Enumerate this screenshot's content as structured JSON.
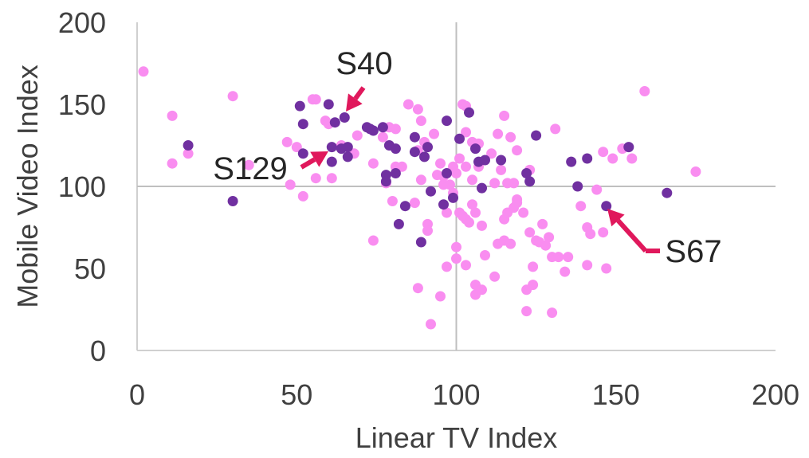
{
  "chart_data": {
    "type": "scatter",
    "xlabel": "Linear TV Index",
    "ylabel": "Mobile Video Index",
    "xlim": [
      0,
      200
    ],
    "ylim": [
      0,
      200
    ],
    "xticks": [
      "0",
      "50",
      "100",
      "150",
      "200"
    ],
    "yticks": [
      "0",
      "50",
      "100",
      "150",
      "200"
    ],
    "reference_lines": {
      "x": 100,
      "y": 100
    },
    "grid": false,
    "legend": "none",
    "series": [
      {
        "color": "#f98df0",
        "points": [
          [
            2,
            170
          ],
          [
            11,
            143
          ],
          [
            11,
            114
          ],
          [
            16,
            120
          ],
          [
            30,
            155
          ],
          [
            35,
            113
          ],
          [
            47,
            127
          ],
          [
            48,
            101
          ],
          [
            50,
            124
          ],
          [
            52,
            94
          ],
          [
            55,
            153
          ],
          [
            56,
            153
          ],
          [
            56,
            105
          ],
          [
            59,
            140
          ],
          [
            60,
            138
          ],
          [
            61,
            105
          ],
          [
            64,
            125
          ],
          [
            68,
            120
          ],
          [
            69,
            131
          ],
          [
            74,
            67
          ],
          [
            74,
            114
          ],
          [
            77,
            130
          ],
          [
            78,
            102
          ],
          [
            79,
            136
          ],
          [
            80,
            91
          ],
          [
            81,
            135
          ],
          [
            81,
            112
          ],
          [
            83,
            112
          ],
          [
            85,
            150
          ],
          [
            87,
            90
          ],
          [
            88,
            38
          ],
          [
            88,
            147
          ],
          [
            88,
            122
          ],
          [
            89,
            140
          ],
          [
            89,
            104
          ],
          [
            90,
            127
          ],
          [
            91,
            77
          ],
          [
            91,
            73
          ],
          [
            92,
            16
          ],
          [
            93,
            132
          ],
          [
            94,
            107
          ],
          [
            95,
            33
          ],
          [
            95,
            114
          ],
          [
            96,
            101
          ],
          [
            96,
            106
          ],
          [
            97,
            51
          ],
          [
            97,
            84
          ],
          [
            98,
            101
          ],
          [
            99,
            96
          ],
          [
            99,
            112
          ],
          [
            100,
            108
          ],
          [
            100,
            63
          ],
          [
            100,
            56
          ],
          [
            101,
            84
          ],
          [
            101,
            117
          ],
          [
            102,
            150
          ],
          [
            102,
            82
          ],
          [
            103,
            149
          ],
          [
            103,
            133
          ],
          [
            103,
            112
          ],
          [
            103,
            80
          ],
          [
            103,
            52
          ],
          [
            104,
            78
          ],
          [
            105,
            104
          ],
          [
            105,
            89
          ],
          [
            105,
            127
          ],
          [
            106,
            34
          ],
          [
            106,
            40
          ],
          [
            106,
            84
          ],
          [
            107,
            112
          ],
          [
            107,
            126
          ],
          [
            108,
            37
          ],
          [
            108,
            76
          ],
          [
            109,
            58
          ],
          [
            111,
            120
          ],
          [
            112,
            45
          ],
          [
            112,
            102
          ],
          [
            113,
            132
          ],
          [
            113,
            65
          ],
          [
            114,
            110
          ],
          [
            115,
            80
          ],
          [
            115,
            67
          ],
          [
            115,
            143
          ],
          [
            116,
            84
          ],
          [
            116,
            102
          ],
          [
            117,
            65
          ],
          [
            117,
            130
          ],
          [
            118,
            102
          ],
          [
            118,
            87
          ],
          [
            119,
            92
          ],
          [
            119,
            122
          ],
          [
            119,
            90
          ],
          [
            121,
            84
          ],
          [
            122,
            24
          ],
          [
            122,
            37
          ],
          [
            123,
            72
          ],
          [
            123,
            110
          ],
          [
            124,
            51
          ],
          [
            124,
            40
          ],
          [
            125,
            67
          ],
          [
            126,
            66
          ],
          [
            127,
            77
          ],
          [
            128,
            64
          ],
          [
            129,
            69
          ],
          [
            130,
            23
          ],
          [
            130,
            57
          ],
          [
            131,
            135
          ],
          [
            132,
            57
          ],
          [
            134,
            48
          ],
          [
            135,
            57
          ],
          [
            139,
            88
          ],
          [
            141,
            75
          ],
          [
            141,
            52
          ],
          [
            142,
            71
          ],
          [
            144,
            98
          ],
          [
            146,
            121
          ],
          [
            146,
            72
          ],
          [
            147,
            50
          ],
          [
            149,
            117
          ],
          [
            152,
            123
          ],
          [
            155,
            117
          ],
          [
            159,
            158
          ],
          [
            175,
            109
          ]
        ]
      },
      {
        "color": "#7030a0",
        "points": [
          [
            16,
            125
          ],
          [
            30,
            91
          ],
          [
            51,
            149
          ],
          [
            52,
            120
          ],
          [
            52,
            138
          ],
          [
            60,
            150
          ],
          [
            61,
            115
          ],
          [
            61,
            124
          ],
          [
            62,
            139
          ],
          [
            64,
            123
          ],
          [
            65,
            142
          ],
          [
            66,
            124
          ],
          [
            66,
            118
          ],
          [
            72,
            136
          ],
          [
            73,
            135
          ],
          [
            74,
            134
          ],
          [
            77,
            136
          ],
          [
            78,
            107
          ],
          [
            78,
            103
          ],
          [
            79,
            125
          ],
          [
            81,
            123
          ],
          [
            81,
            108
          ],
          [
            82,
            77
          ],
          [
            84,
            88
          ],
          [
            87,
            121
          ],
          [
            87,
            130
          ],
          [
            89,
            66
          ],
          [
            90,
            118
          ],
          [
            91,
            124
          ],
          [
            92,
            97
          ],
          [
            96,
            89
          ],
          [
            97,
            140
          ],
          [
            97,
            108
          ],
          [
            99,
            93
          ],
          [
            101,
            129
          ],
          [
            104,
            145
          ],
          [
            106,
            123
          ],
          [
            107,
            115
          ],
          [
            108,
            99
          ],
          [
            109,
            116
          ],
          [
            114,
            116
          ],
          [
            122,
            108
          ],
          [
            123,
            103
          ],
          [
            125,
            131
          ],
          [
            136,
            115
          ],
          [
            138,
            100
          ],
          [
            141,
            117
          ],
          [
            147,
            88
          ],
          [
            154,
            124
          ],
          [
            166,
            96
          ]
        ]
      }
    ],
    "annotations": [
      {
        "label": "S40",
        "x": 65,
        "y": 142
      },
      {
        "label": "S129",
        "x": 61,
        "y": 124
      },
      {
        "label": "S67",
        "x": 147,
        "y": 88
      }
    ]
  }
}
